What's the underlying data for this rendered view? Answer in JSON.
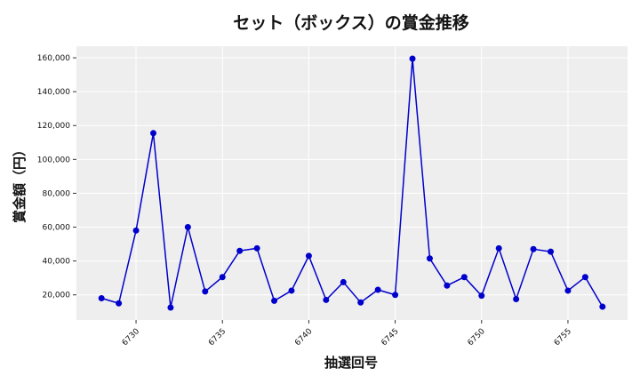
{
  "chart_data": {
    "type": "line",
    "title": "セット（ボックス）の賞金推移",
    "xlabel": "抽選回号",
    "ylabel": "賞金額（円）",
    "x": [
      6728,
      6729,
      6730,
      6731,
      6732,
      6733,
      6734,
      6735,
      6736,
      6737,
      6738,
      6739,
      6740,
      6741,
      6742,
      6743,
      6744,
      6745,
      6746,
      6747,
      6748,
      6749,
      6750,
      6751,
      6752,
      6753,
      6754,
      6755,
      6756,
      6757
    ],
    "series": [
      {
        "values": [
          18000,
          15000,
          58000,
          115500,
          12500,
          60000,
          22000,
          30500,
          46000,
          47500,
          16500,
          22500,
          43000,
          17000,
          27500,
          15500,
          23000,
          20000,
          159500,
          41500,
          25500,
          30500,
          19500,
          47500,
          17500,
          47000,
          45500,
          22500,
          30500,
          13000
        ],
        "color": "#0000cc"
      }
    ],
    "xticks": [
      6730,
      6735,
      6740,
      6745,
      6750,
      6755
    ],
    "xtick_labels": [
      "6730",
      "6735",
      "6740",
      "6745",
      "6750",
      "6755"
    ],
    "yticks": [
      20000,
      40000,
      60000,
      80000,
      100000,
      120000,
      140000,
      160000
    ],
    "ytick_labels": [
      "20,000",
      "40,000",
      "60,000",
      "80,000",
      "100,000",
      "120,000",
      "140,000",
      "160,000"
    ],
    "xlim": [
      6726.55,
      6758.45
    ],
    "ylim": [
      5150,
      166850
    ],
    "grid": true,
    "background": "#eeeeee",
    "grid_color": "#ffffff"
  }
}
